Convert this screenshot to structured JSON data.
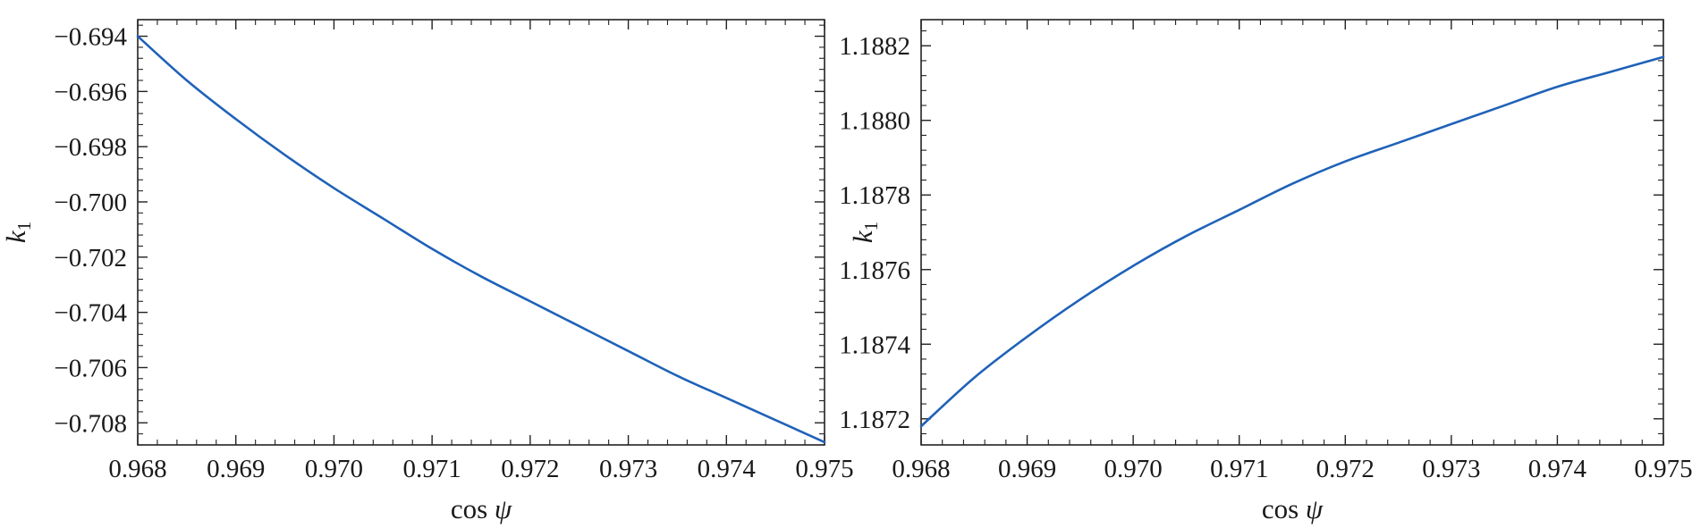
{
  "colors": {
    "series": "#1f62b8",
    "axis": "#222222"
  },
  "chart_data": [
    {
      "type": "line",
      "title": "",
      "xlabel_main": "cos",
      "xlabel_symbol": "ψ",
      "ylabel_main": "k",
      "ylabel_sub": "1",
      "xlim": [
        0.968,
        0.975
      ],
      "ylim": [
        -0.7088,
        -0.6934
      ],
      "xticks": [
        0.968,
        0.969,
        0.97,
        0.971,
        0.972,
        0.973,
        0.974,
        0.975
      ],
      "xtick_labels": [
        "0.968",
        "0.969",
        "0.970",
        "0.971",
        "0.972",
        "0.973",
        "0.974",
        "0.975"
      ],
      "yticks": [
        -0.694,
        -0.696,
        -0.698,
        -0.7,
        -0.702,
        -0.704,
        -0.706,
        -0.708
      ],
      "ytick_labels": [
        "−0.694",
        "−0.696",
        "−0.698",
        "−0.700",
        "−0.702",
        "−0.704",
        "−0.706",
        "−0.708"
      ],
      "grid": false,
      "series": [
        {
          "x": [
            0.968,
            0.9685,
            0.969,
            0.9695,
            0.97,
            0.9705,
            0.971,
            0.9715,
            0.972,
            0.9725,
            0.973,
            0.9735,
            0.974,
            0.9745,
            0.975
          ],
          "y": [
            -0.694,
            -0.6956,
            -0.697,
            -0.6983,
            -0.6995,
            -0.7006,
            -0.7017,
            -0.7027,
            -0.7036,
            -0.7045,
            -0.7054,
            -0.7063,
            -0.7071,
            -0.7079,
            -0.7087
          ]
        }
      ]
    },
    {
      "type": "line",
      "title": "",
      "xlabel_main": "cos",
      "xlabel_symbol": "ψ",
      "ylabel_main": "k",
      "ylabel_sub": "1",
      "xlim": [
        0.968,
        0.975
      ],
      "ylim": [
        1.18713,
        1.18827
      ],
      "xticks": [
        0.968,
        0.969,
        0.97,
        0.971,
        0.972,
        0.973,
        0.974,
        0.975
      ],
      "xtick_labels": [
        "0.968",
        "0.969",
        "0.970",
        "0.971",
        "0.972",
        "0.973",
        "0.974",
        "0.975"
      ],
      "yticks": [
        1.1872,
        1.1874,
        1.1876,
        1.1878,
        1.188,
        1.1882
      ],
      "ytick_labels": [
        "1.1872",
        "1.1874",
        "1.1876",
        "1.1878",
        "1.1880",
        "1.1882"
      ],
      "grid": false,
      "series": [
        {
          "x": [
            0.968,
            0.9685,
            0.969,
            0.9695,
            0.97,
            0.9705,
            0.971,
            0.9715,
            0.972,
            0.9725,
            0.973,
            0.9735,
            0.974,
            0.9745,
            0.975
          ],
          "y": [
            1.18718,
            1.18731,
            1.18742,
            1.18752,
            1.18761,
            1.18769,
            1.18776,
            1.18783,
            1.18789,
            1.18794,
            1.18799,
            1.18804,
            1.18809,
            1.18813,
            1.18817
          ]
        }
      ]
    }
  ]
}
